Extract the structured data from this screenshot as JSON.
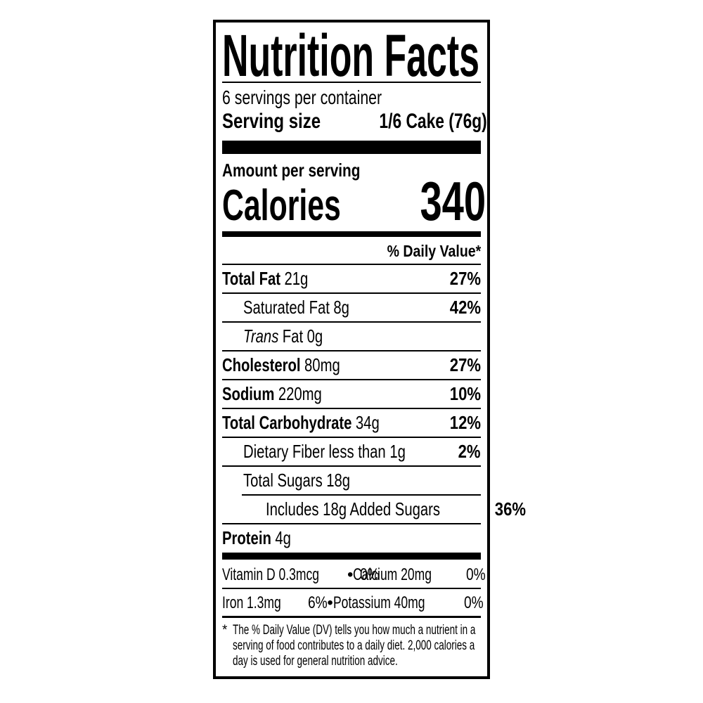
{
  "colors": {
    "ink": "#000000",
    "paper": "#ffffff"
  },
  "label": {
    "title": "Nutrition Facts",
    "servings_per_container": "6 servings per container",
    "serving_size_label": "Serving size",
    "serving_size_value": "1/6 Cake (76g)",
    "amount_per_serving": "Amount per serving",
    "calories_label": "Calories",
    "calories_value": "340",
    "daily_value_header": "% Daily Value*",
    "nutrients": [
      {
        "name": "Total Fat",
        "amount": "21g",
        "dv": "27%"
      },
      {
        "name": "Saturated Fat",
        "amount": "8g",
        "dv": "42%"
      },
      {
        "name_italic": "Trans",
        "name": "Fat",
        "amount": "0g",
        "dv": ""
      },
      {
        "name": "Cholesterol",
        "amount": "80mg",
        "dv": "27%"
      },
      {
        "name": "Sodium",
        "amount": "220mg",
        "dv": "10%"
      },
      {
        "name": "Total Carbohydrate",
        "amount": "34g",
        "dv": "12%"
      },
      {
        "name": "Dietary Fiber",
        "amount": "less than 1g",
        "dv": "2%"
      },
      {
        "name": "Total Sugars",
        "amount": "18g",
        "dv": ""
      },
      {
        "name": "Includes 18g Added Sugars",
        "amount": "",
        "dv": "36%"
      },
      {
        "name": "Protein",
        "amount": "4g",
        "dv": ""
      }
    ],
    "micronutrients": {
      "bullet": "•",
      "rows": [
        {
          "left_name": "Vitamin D 0.3mcg",
          "left_dv": "0%",
          "right_name": "Calcium 20mg",
          "right_dv": "0%"
        },
        {
          "left_name": "Iron 1.3mg",
          "left_dv": "6%",
          "right_name": "Potassium 40mg",
          "right_dv": "0%"
        }
      ]
    },
    "footnote": {
      "marker": "*",
      "text": "The % Daily Value (DV) tells you how much a nutrient in a serving of food contributes to a daily diet. 2,000 calories a day is used for general nutrition advice."
    }
  }
}
